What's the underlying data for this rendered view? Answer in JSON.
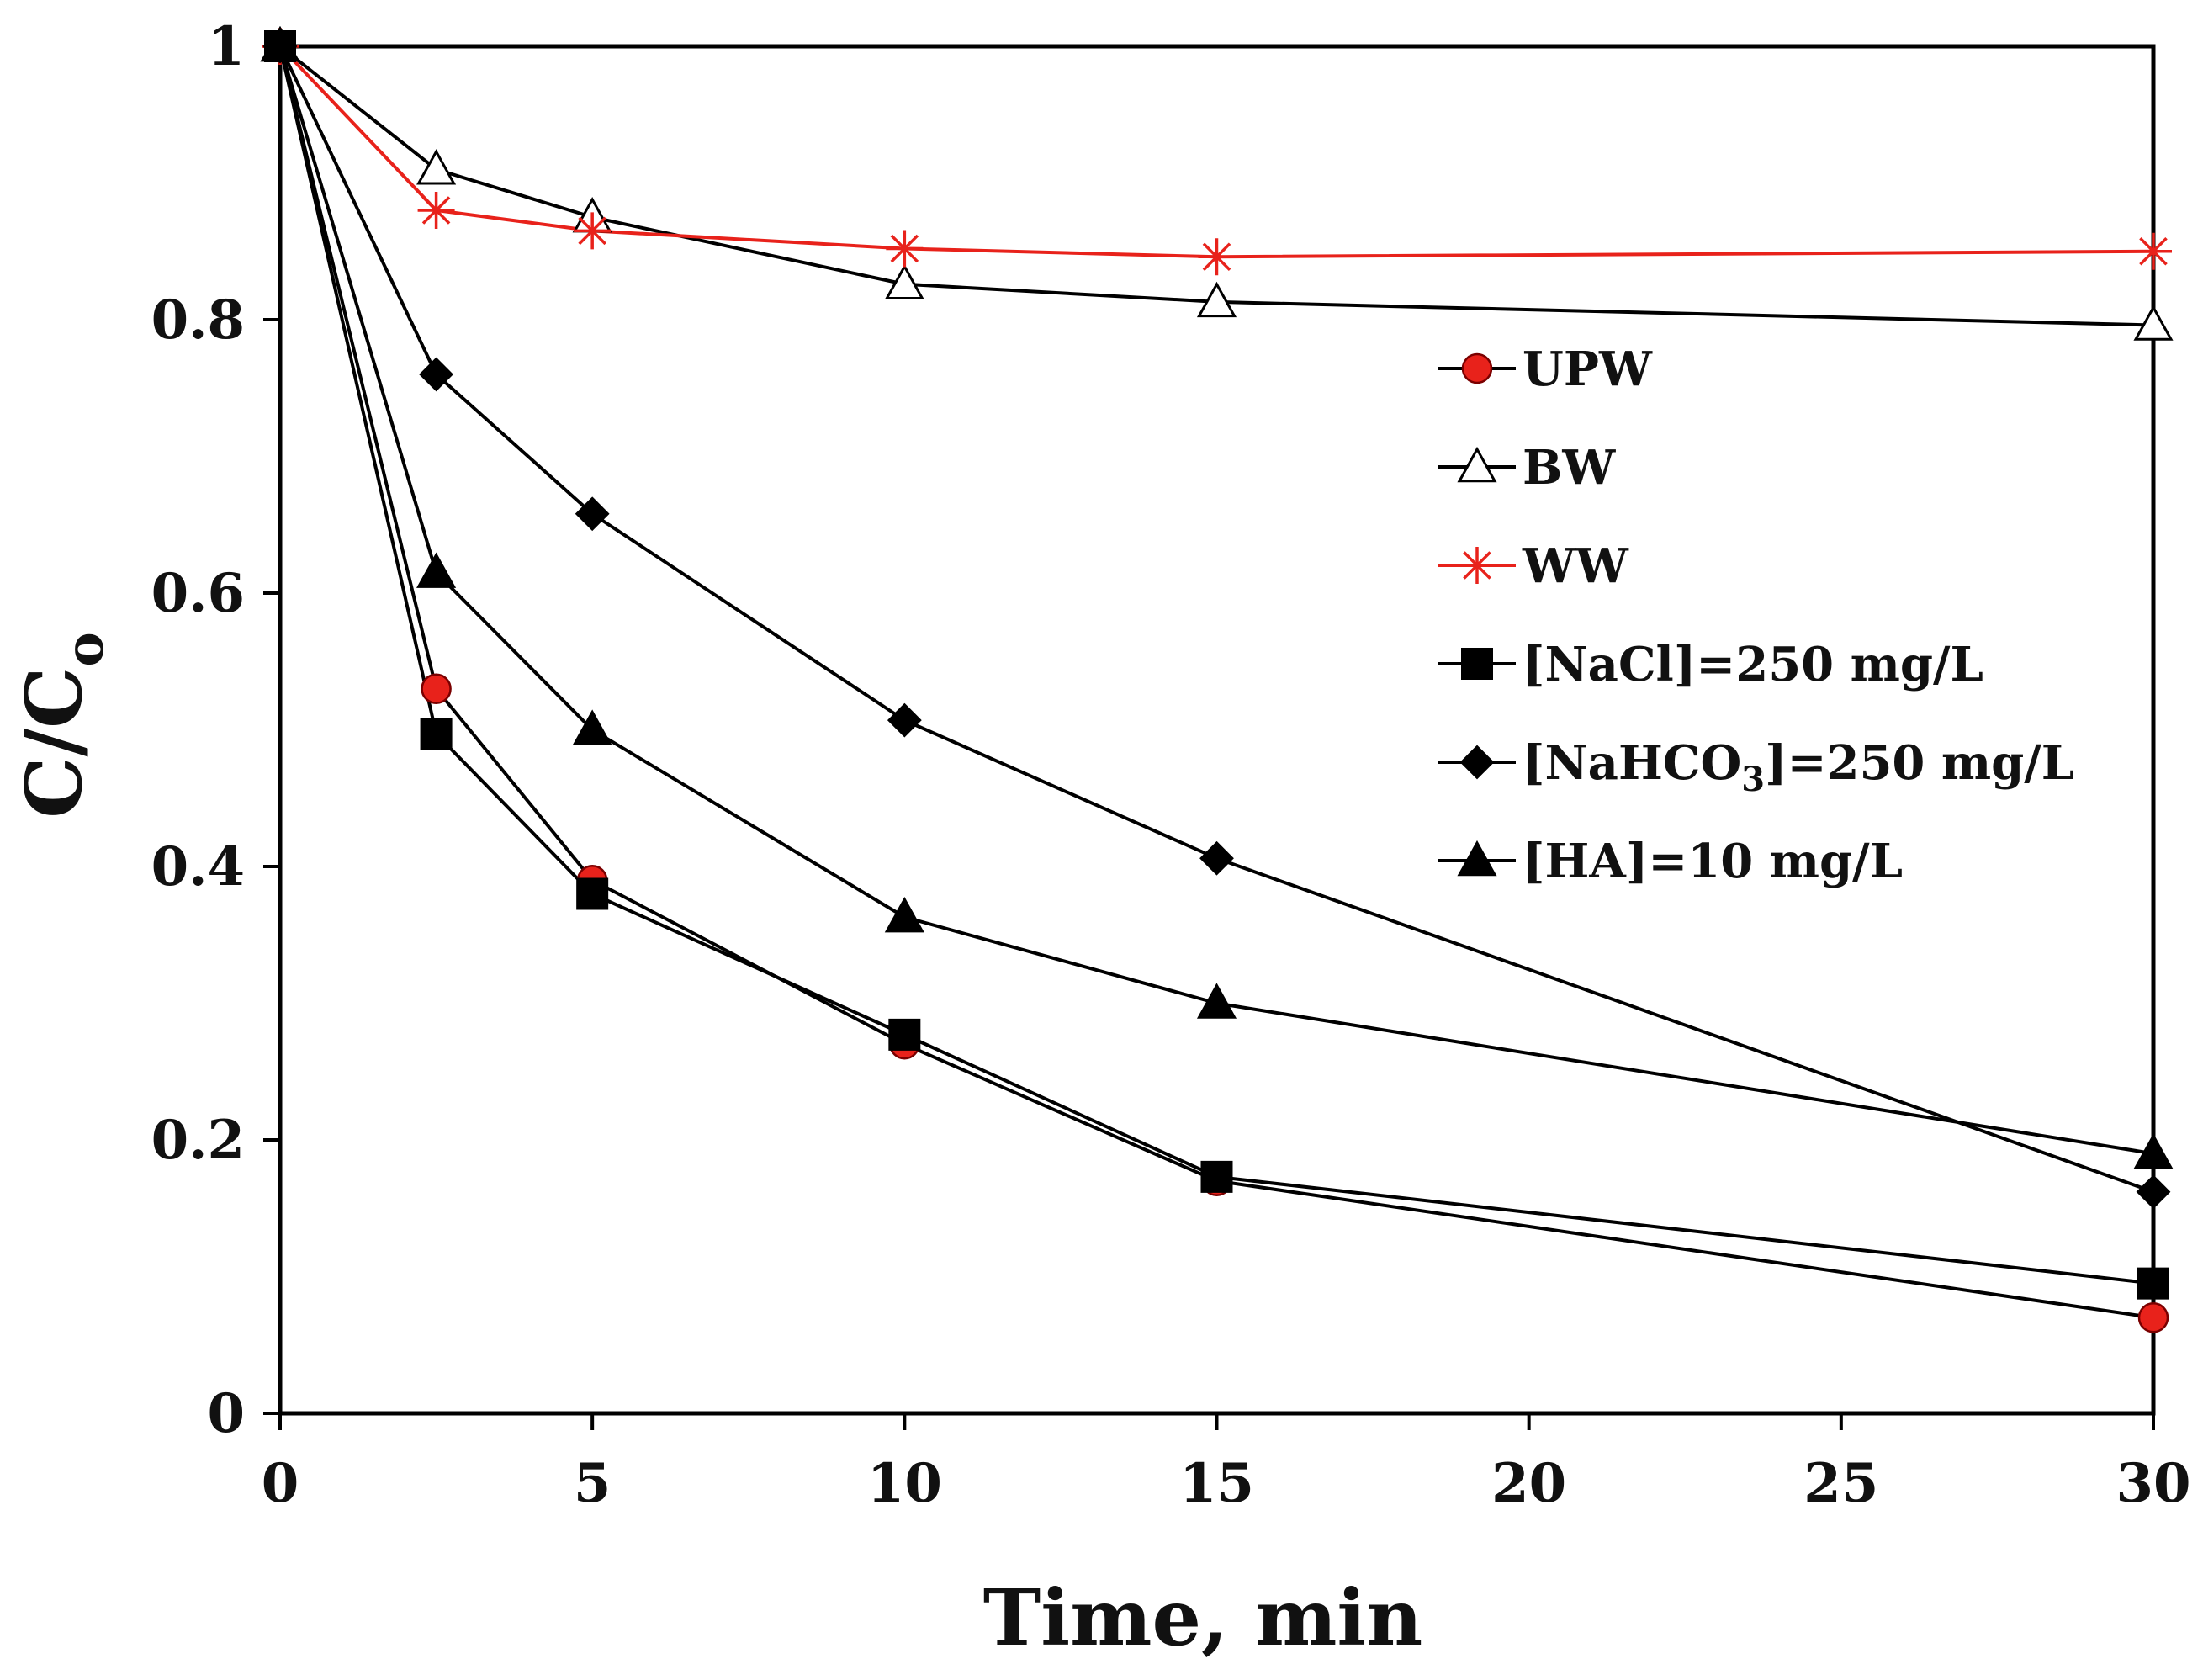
{
  "chart_data": {
    "type": "line",
    "title": "",
    "xlabel": "Time, min",
    "ylabel": "C/Co",
    "ylabel_main": "C/C",
    "ylabel_sub": "o",
    "xlim": [
      0,
      30
    ],
    "ylim": [
      0,
      1
    ],
    "xticks": [
      0,
      5,
      10,
      15,
      20,
      25,
      30
    ],
    "xtick_labels": [
      "0",
      "5",
      "10",
      "15",
      "20",
      "25",
      "30"
    ],
    "yticks": [
      0,
      0.2,
      0.4,
      0.6,
      0.8,
      1
    ],
    "ytick_labels": [
      "0",
      "0.2",
      "0.4",
      "0.6",
      "0.8",
      "1"
    ],
    "grid": false,
    "legend_position": "right",
    "x": [
      0,
      2.5,
      5,
      10,
      15,
      30
    ],
    "series": [
      {
        "name": "UPW",
        "label_main": "UPW",
        "label_sub": "",
        "label_tail": "",
        "marker": "circle",
        "line_color": "#000000",
        "marker_fill": "#e8221b",
        "marker_stroke": "#7a0000",
        "values": [
          1.0,
          0.53,
          0.39,
          0.27,
          0.17,
          0.07
        ]
      },
      {
        "name": "BW",
        "label_main": "BW",
        "label_sub": "",
        "label_tail": "",
        "marker": "triangle-open",
        "line_color": "#000000",
        "marker_fill": "#ffffff",
        "marker_stroke": "#000000",
        "values": [
          1.0,
          0.91,
          0.875,
          0.826,
          0.813,
          0.796
        ]
      },
      {
        "name": "WW",
        "label_main": "WW",
        "label_sub": "",
        "label_tail": "",
        "marker": "asterisk",
        "line_color": "#e8221b",
        "marker_fill": "none",
        "marker_stroke": "#e8221b",
        "values": [
          1.0,
          0.88,
          0.865,
          0.852,
          0.846,
          0.85
        ]
      },
      {
        "name": "[NaCl]=250 mg/L",
        "label_main": "[NaCl]=250 mg/L",
        "label_sub": "",
        "label_tail": "",
        "marker": "square",
        "line_color": "#000000",
        "marker_fill": "#000000",
        "marker_stroke": "#000000",
        "values": [
          1.0,
          0.497,
          0.38,
          0.277,
          0.173,
          0.095
        ]
      },
      {
        "name": "[NaHCO3]=250 mg/L",
        "label_main": "[NaHCO",
        "label_sub": "3",
        "label_tail": "]=250 mg/L",
        "marker": "diamond",
        "line_color": "#000000",
        "marker_fill": "#000000",
        "marker_stroke": "#000000",
        "values": [
          1.0,
          0.76,
          0.658,
          0.507,
          0.406,
          0.162
        ]
      },
      {
        "name": "[HA]=10 mg/L",
        "label_main": "[HA]=10 mg/L",
        "label_sub": "",
        "label_tail": "",
        "marker": "triangle",
        "line_color": "#000000",
        "marker_fill": "#000000",
        "marker_stroke": "#000000",
        "values": [
          1.0,
          0.615,
          0.5,
          0.363,
          0.3,
          0.19
        ]
      }
    ]
  }
}
